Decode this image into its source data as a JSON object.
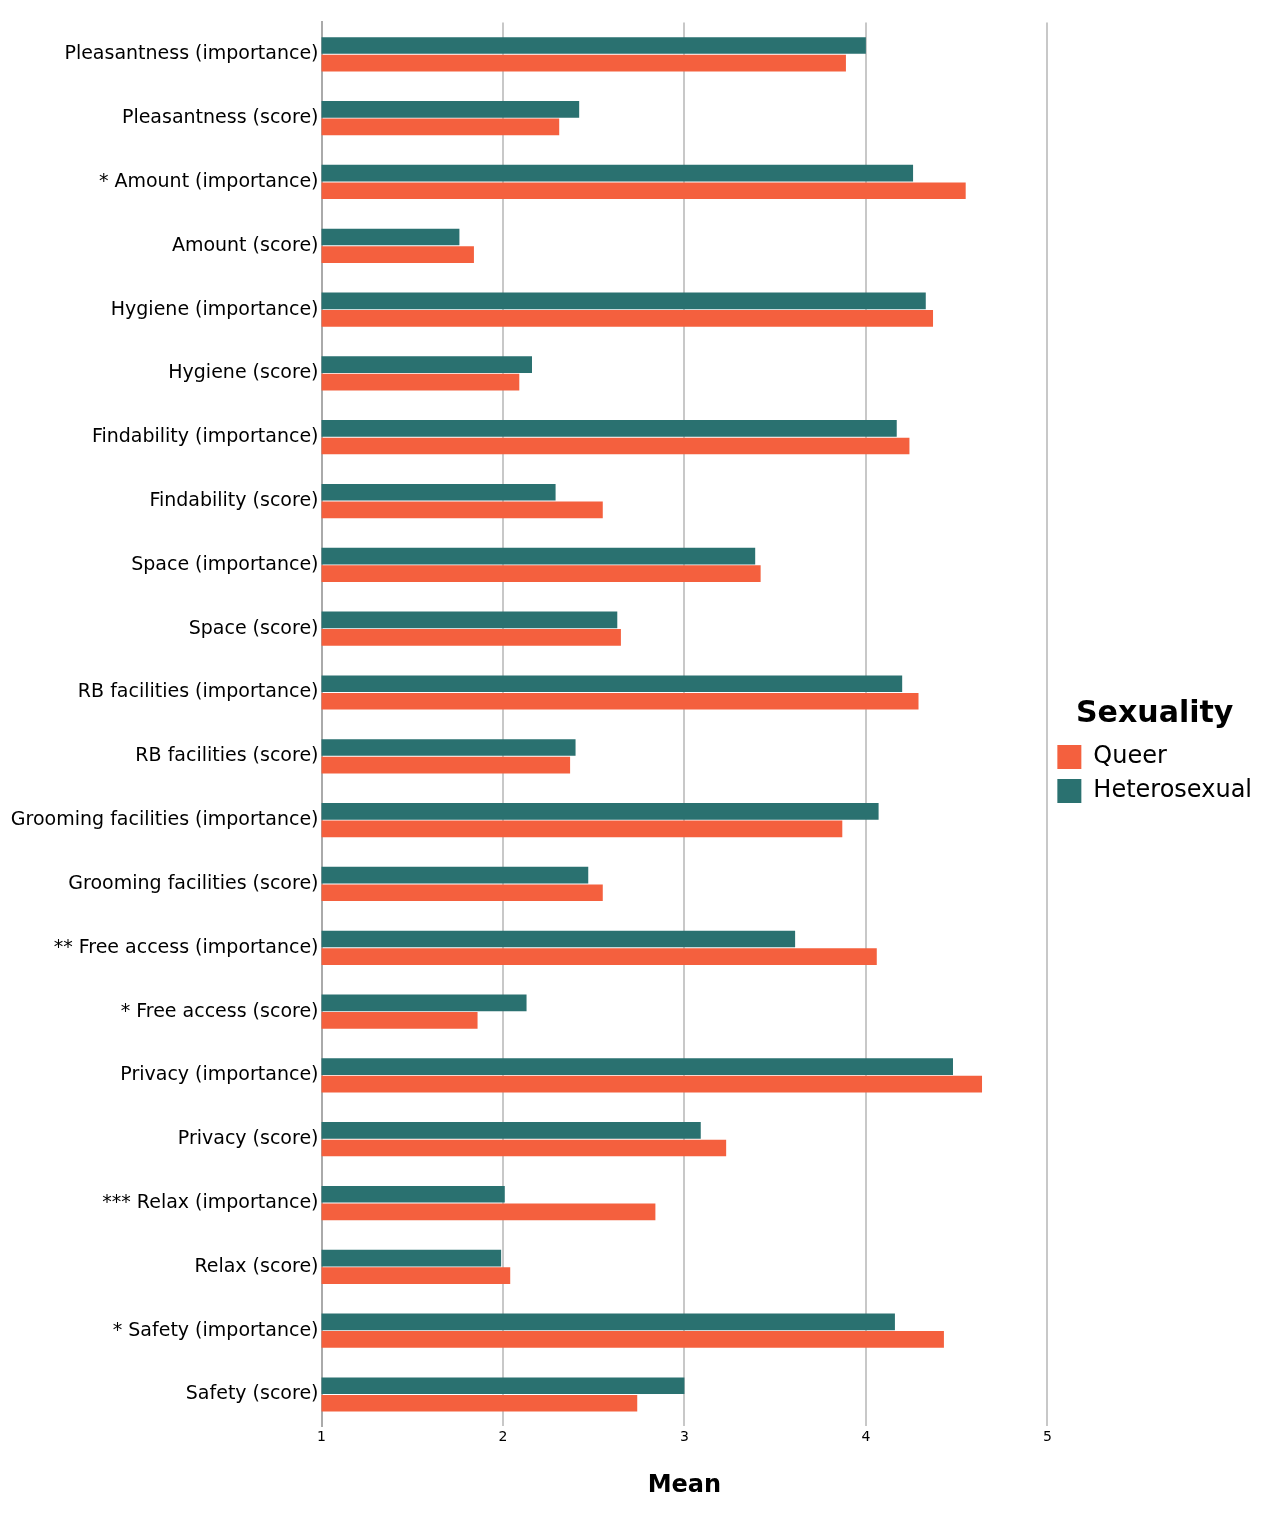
{
  "chart_data": {
    "type": "bar",
    "orientation": "horizontal",
    "xlabel": "Mean",
    "legend_title": "Sexuality",
    "legend": "right",
    "grid": "x",
    "categories": [
      "Pleasantness (importance)",
      "Pleasantness (score)",
      "* Amount (importance)",
      "Amount (score)",
      "Hygiene (importance)",
      "Hygiene (score)",
      "Findability (importance)",
      "Findability (score)",
      "Space (importance)",
      "Space (score)",
      "RB facilities (importance)",
      "RB facilities (score)",
      "Grooming facilities (importance)",
      "Grooming facilities (score)",
      "** Free access (importance)",
      "* Free access (score)",
      "Privacy (importance)",
      "Privacy (score)",
      "*** Relax (importance)",
      "Relax (score)",
      "* Safety (importance)",
      "Safety (score)"
    ],
    "xlim": [
      1,
      5
    ],
    "xticks": [
      1,
      2,
      3,
      4,
      5
    ],
    "series": [
      {
        "name": "Queer",
        "color": "#f4603e",
        "values": [
          3.89,
          2.31,
          4.55,
          1.84,
          4.37,
          2.09,
          4.24,
          2.55,
          3.42,
          2.65,
          4.29,
          2.37,
          3.87,
          2.55,
          4.06,
          1.86,
          4.64,
          3.23,
          2.84,
          2.04,
          4.43,
          2.74
        ]
      },
      {
        "name": "Heterosexual",
        "color": "#2a7170",
        "values": [
          4.0,
          2.42,
          4.26,
          1.76,
          4.33,
          2.16,
          4.17,
          2.29,
          3.39,
          2.63,
          4.2,
          2.4,
          4.07,
          2.47,
          3.61,
          2.13,
          4.48,
          3.09,
          2.01,
          1.99,
          4.16,
          3.0
        ]
      }
    ]
  }
}
